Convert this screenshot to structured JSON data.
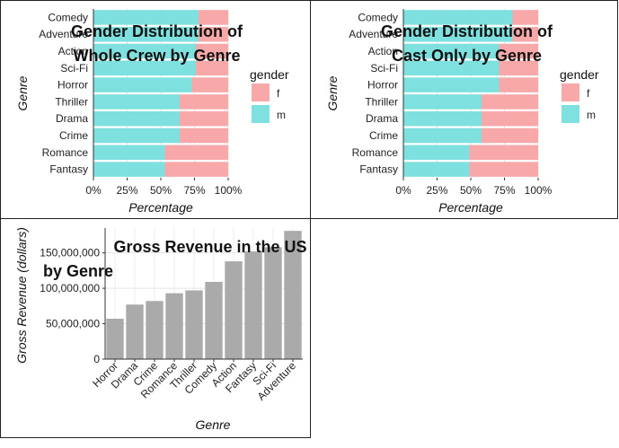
{
  "chart_data": [
    {
      "type": "bar",
      "orientation": "horizontal",
      "stacked": true,
      "title": "Gender Distribution of Whole Crew by Genre",
      "title_lines": [
        "Gender Distribution of",
        "Whole Crew by Genre"
      ],
      "xlabel": "Percentage",
      "ylabel": "Genre",
      "xlim": [
        0,
        1
      ],
      "x_ticks": [
        "0%",
        "25%",
        "50%",
        "75%",
        "100%"
      ],
      "legend_title": "gender",
      "legend_position": "right",
      "grid": true,
      "categories": [
        "Comedy",
        "Adventure",
        "Action",
        "Sci-Fi",
        "Horror",
        "Thriller",
        "Drama",
        "Crime",
        "Romance",
        "Fantasy"
      ],
      "series": [
        {
          "name": "f",
          "color": "#F8A8A8",
          "values": [
            0.22,
            0.22,
            0.24,
            0.24,
            0.27,
            0.36,
            0.36,
            0.36,
            0.47,
            0.47
          ]
        },
        {
          "name": "m",
          "color": "#7FE0E0",
          "values": [
            0.78,
            0.78,
            0.76,
            0.76,
            0.73,
            0.64,
            0.64,
            0.64,
            0.53,
            0.53
          ]
        }
      ]
    },
    {
      "type": "bar",
      "orientation": "horizontal",
      "stacked": true,
      "title": "Gender Distribution of Cast Only by Genre",
      "title_lines": [
        "Gender Distribution of",
        "Cast Only by Genre"
      ],
      "xlabel": "Percentage",
      "ylabel": "Genre",
      "xlim": [
        0,
        1
      ],
      "x_ticks": [
        "0%",
        "25%",
        "50%",
        "75%",
        "100%"
      ],
      "legend_title": "gender",
      "legend_position": "right",
      "grid": true,
      "categories": [
        "Comedy",
        "Adventure",
        "Action",
        "Sci-Fi",
        "Horror",
        "Thriller",
        "Drama",
        "Crime",
        "Romance",
        "Fantasy"
      ],
      "series": [
        {
          "name": "f",
          "color": "#F8A8A8",
          "values": [
            0.19,
            0.19,
            0.29,
            0.29,
            0.29,
            0.42,
            0.42,
            0.42,
            0.51,
            0.51
          ]
        },
        {
          "name": "m",
          "color": "#7FE0E0",
          "values": [
            0.81,
            0.81,
            0.71,
            0.71,
            0.71,
            0.58,
            0.58,
            0.58,
            0.49,
            0.49
          ]
        }
      ]
    },
    {
      "type": "bar",
      "title": "Gross Revenue in the US by Genre",
      "title_lines": [
        "Gross Revenue in the US",
        "by Genre"
      ],
      "xlabel": "Genre",
      "ylabel": "Gross Revenue (dollars)",
      "ylim": [
        0,
        185000000
      ],
      "y_ticks": [
        0,
        50000000,
        100000000,
        150000000
      ],
      "y_tick_labels": [
        "0",
        "50,000,000",
        "100,000,000",
        "150,000,000"
      ],
      "bar_color": "#AAAAAA",
      "grid": true,
      "categories": [
        "Horror",
        "Drama",
        "Crime",
        "Romance",
        "Thriller",
        "Comedy",
        "Action",
        "Fantasy",
        "Sci-Fi",
        "Adventure"
      ],
      "values": [
        57000000,
        77000000,
        82000000,
        93000000,
        97000000,
        109000000,
        138000000,
        152000000,
        158000000,
        181000000
      ]
    }
  ]
}
